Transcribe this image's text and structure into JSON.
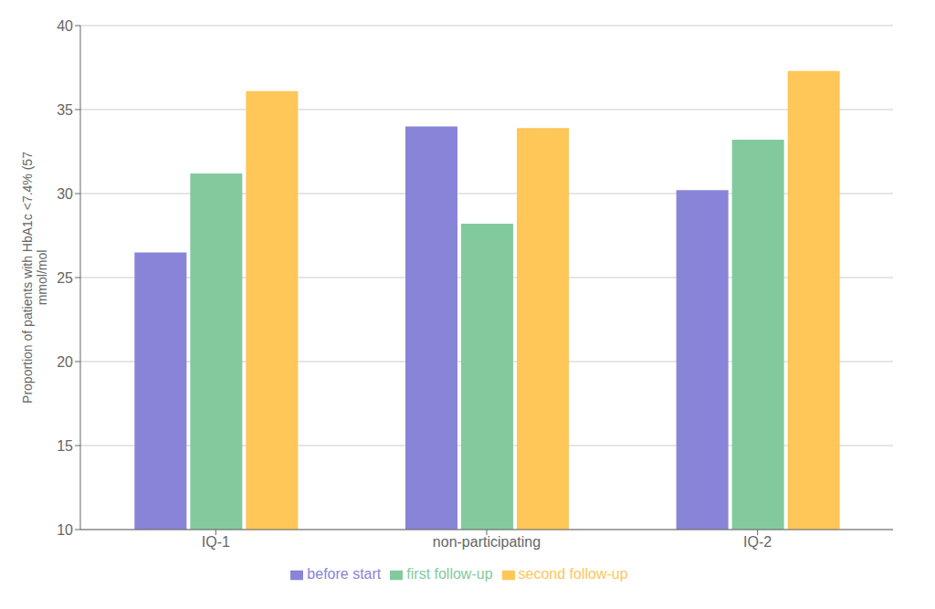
{
  "chart_data": {
    "type": "bar",
    "categories": [
      "IQ-1",
      "non-participating",
      "IQ-2"
    ],
    "series": [
      {
        "name": "before start",
        "color": "#8884d8",
        "values": [
          26.5,
          34.0,
          30.2
        ]
      },
      {
        "name": "first follow-up",
        "color": "#82ca9d",
        "values": [
          31.2,
          28.2,
          33.2
        ]
      },
      {
        "name": "second follow-up",
        "color": "#ffc658",
        "values": [
          36.1,
          33.9,
          37.3
        ]
      }
    ],
    "y_label": "Proportion of patients with HbA1c <7.4% (57\nmmol/mol",
    "ylim": [
      10,
      40
    ],
    "yticks": [
      10,
      15,
      20,
      25,
      30,
      35,
      40
    ],
    "grid": true,
    "legend": "bottom"
  }
}
